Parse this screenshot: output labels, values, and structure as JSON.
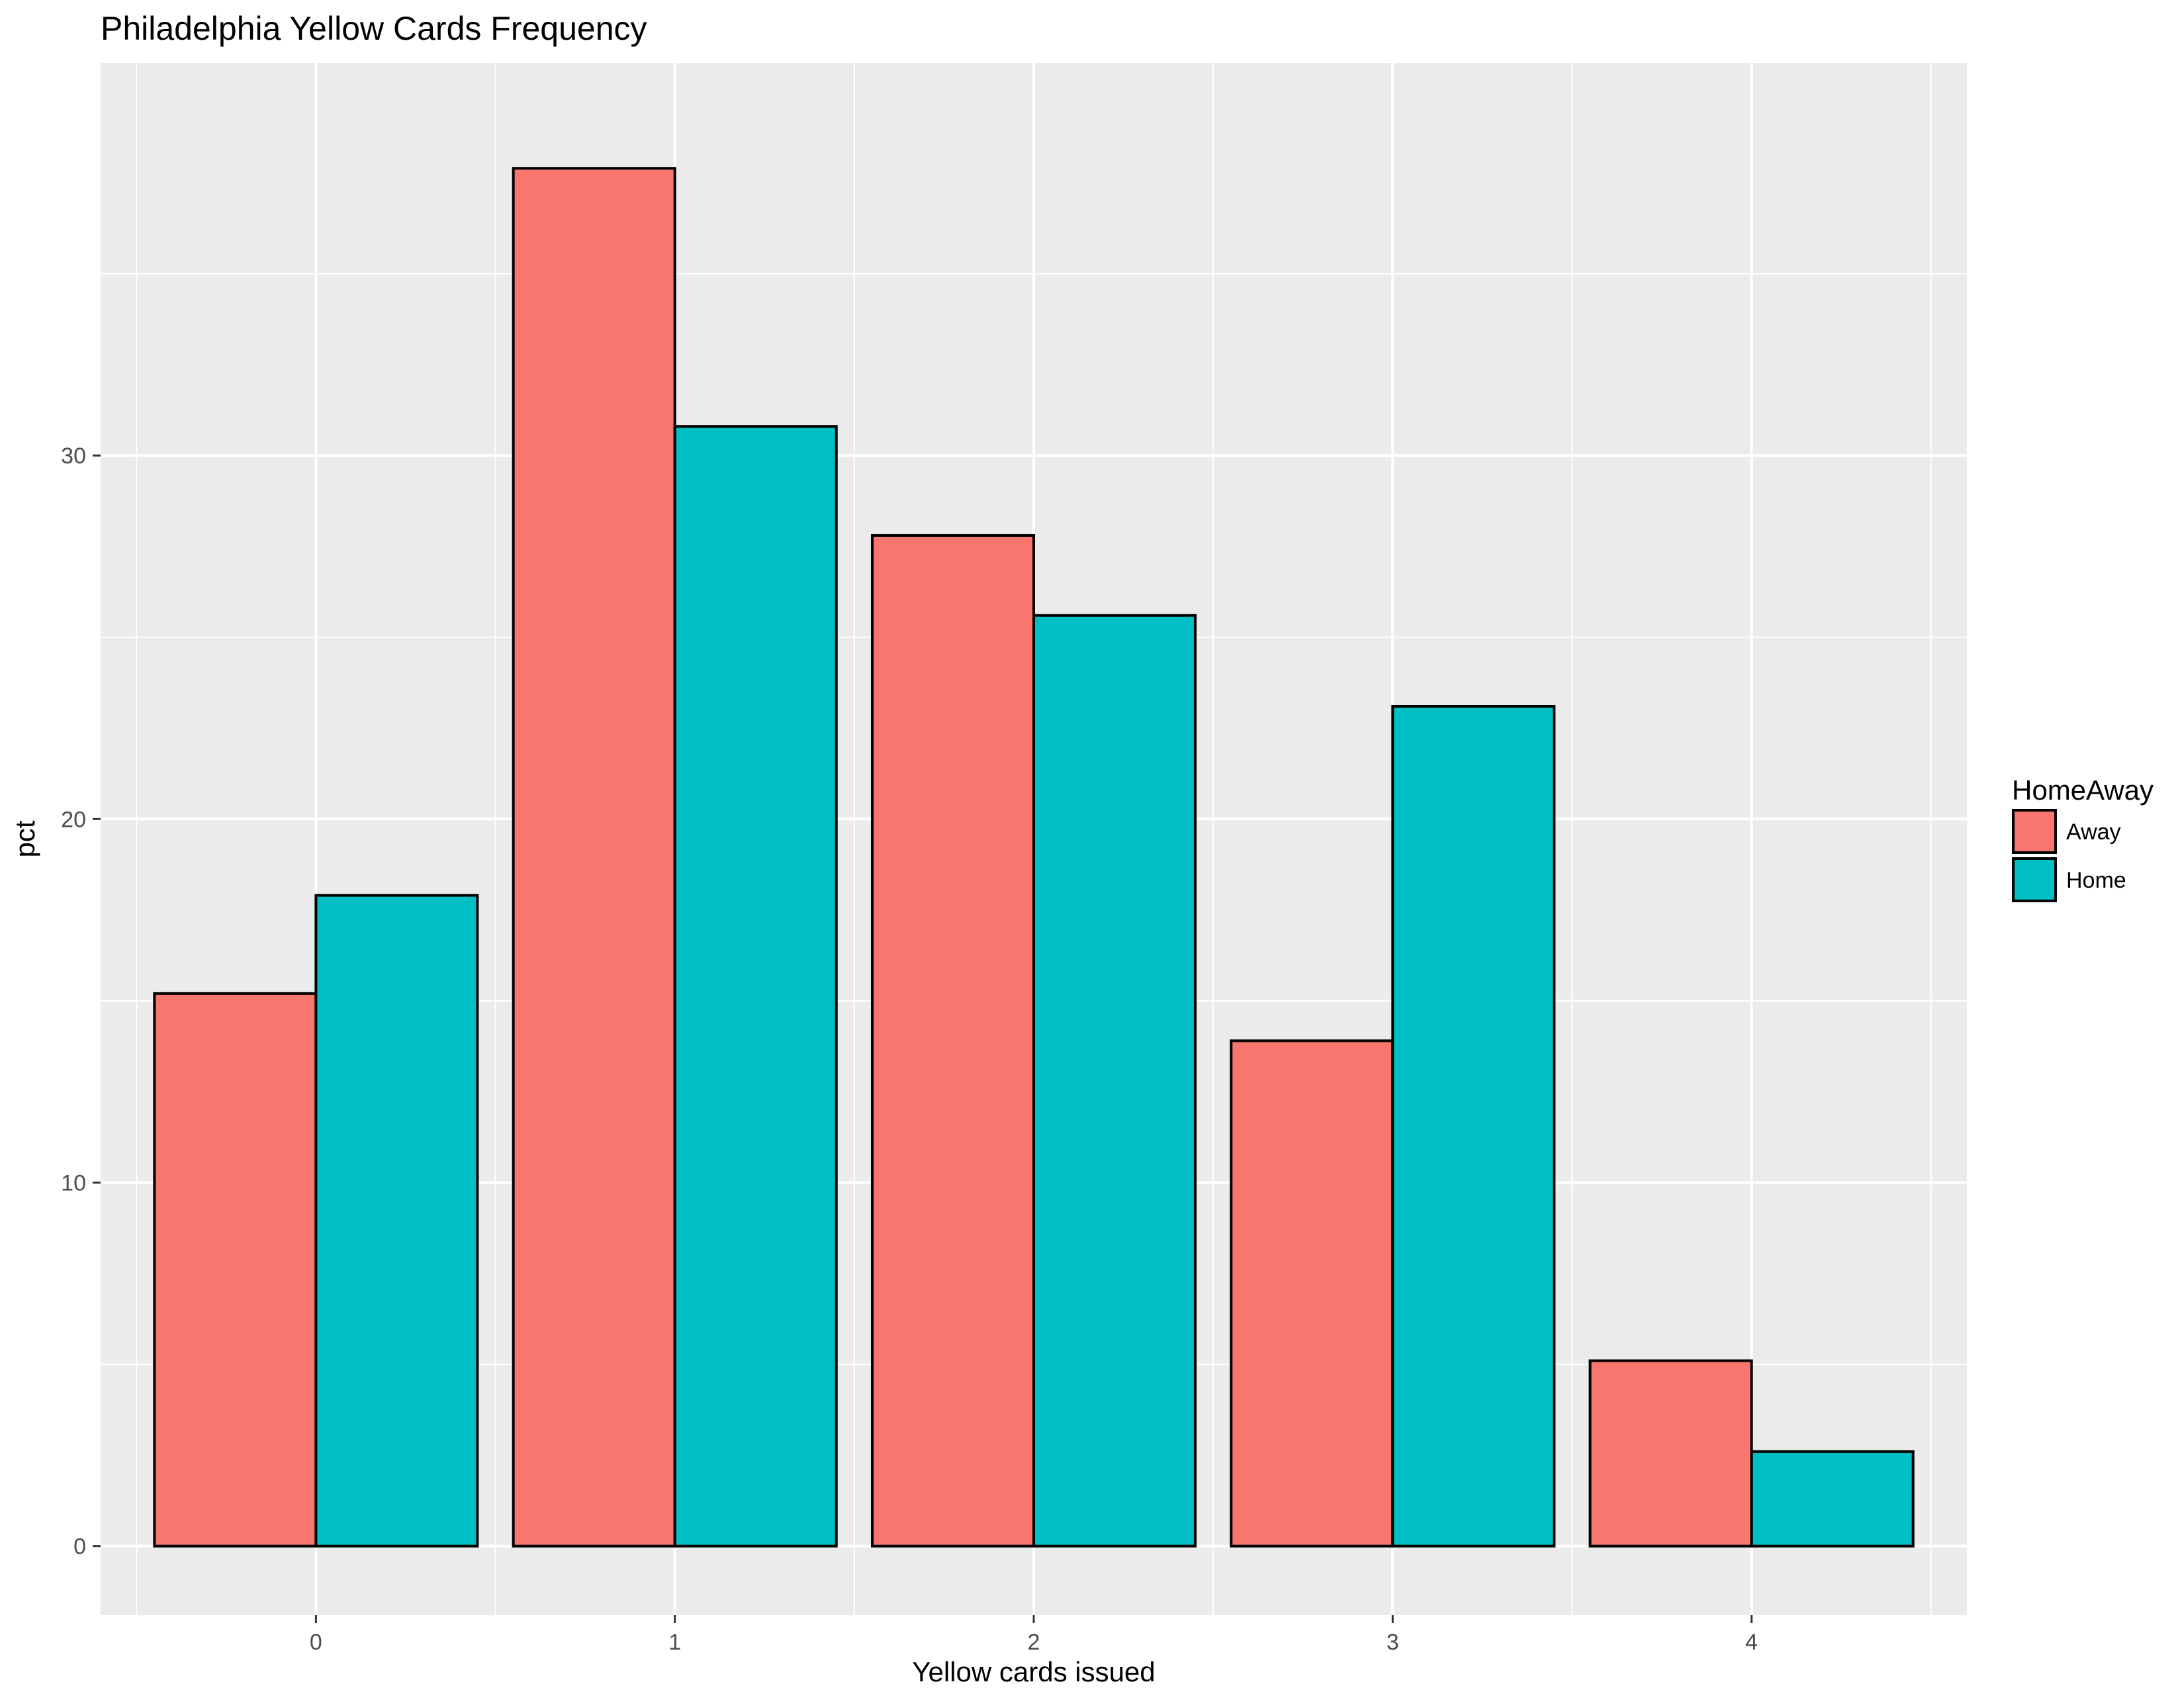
{
  "chart_data": {
    "type": "bar",
    "title": "Philadelphia Yellow Cards Frequency",
    "xlabel": "Yellow cards issued",
    "ylabel": "pct",
    "categories": [
      "0",
      "1",
      "2",
      "3",
      "4"
    ],
    "series": [
      {
        "name": "Away",
        "color": "#F8766D",
        "values": [
          15.2,
          37.9,
          27.8,
          13.9,
          5.1
        ]
      },
      {
        "name": "Home",
        "color": "#00BFC4",
        "values": [
          17.9,
          30.8,
          25.6,
          23.1,
          2.6
        ]
      }
    ],
    "ylim": [
      -1.9,
      40.8
    ],
    "yticks": [
      0,
      10,
      20,
      30
    ],
    "ytick_labels": [
      "0",
      "10",
      "20",
      "30"
    ],
    "legend": {
      "title": "HomeAway",
      "position": "right"
    },
    "grid": true,
    "panel_background": "#EBEBEB",
    "bar_outline": "#000000"
  }
}
